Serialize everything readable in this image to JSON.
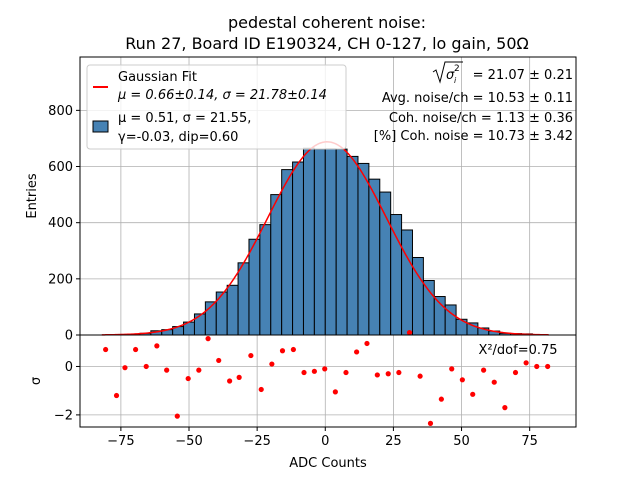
{
  "title_line1": "pedestal coherent noise:",
  "title_line2": "Run 27, Board ID E190324, CH 0-127, lo gain, 50Ω",
  "stats": {
    "sigma_total": "= 21.07 ± 0.21",
    "avg_noise": "Avg. noise/ch = 10.53 ± 0.11",
    "coh_noise": "Coh. noise/ch = 1.13 ± 0.36",
    "coh_pct": "[%] Coh. noise = 10.73  ± 3.42"
  },
  "legend": {
    "fit_label": "Gaussian Fit",
    "fit_params": "μ = 0.66±0.14, σ = 21.78±0.14",
    "hist_line1": "μ = 0.51, σ = 21.55,",
    "hist_line2": "γ=-0.03, dip=0.60"
  },
  "chi2_label": "X²/dof=0.75",
  "colors": {
    "bar_fill": "#4682b4",
    "fit_line": "#ff0000",
    "residual_points": "#ff0000"
  },
  "chart_data": [
    {
      "type": "bar",
      "title": "pedestal coherent noise: Run 27, Board ID E190324, CH 0-127, lo gain, 50Ω",
      "xlabel": "ADC Counts",
      "ylabel": "Entries",
      "xlim": [
        -90,
        92
      ],
      "ylim": [
        0,
        990
      ],
      "grid": true,
      "legend_position": "top-left",
      "bin_width": 4,
      "bin_centers": [
        -78,
        -74,
        -70,
        -66,
        -62,
        -58,
        -54,
        -50,
        -46,
        -42,
        -38,
        -34,
        -30,
        -26,
        -22,
        -18,
        -14,
        -10,
        -6,
        -2,
        2,
        6,
        10,
        14,
        18,
        22,
        26,
        30,
        34,
        38,
        42,
        46,
        50,
        54,
        58,
        62,
        66,
        70,
        74,
        78
      ],
      "values": [
        1,
        2,
        3,
        6,
        15,
        19,
        30,
        46,
        75,
        118,
        153,
        177,
        257,
        341,
        393,
        500,
        589,
        616,
        665,
        662,
        663,
        662,
        636,
        611,
        555,
        509,
        429,
        374,
        276,
        194,
        137,
        107,
        56,
        43,
        25,
        14,
        6,
        5,
        4,
        1
      ],
      "series": [
        {
          "name": "Gaussian Fit",
          "type": "line",
          "function": "gaussian",
          "mu": 0.66,
          "sigma": 21.78,
          "peak": 688,
          "x_range": [
            -82,
            82
          ]
        }
      ],
      "xticks": [
        -75,
        -50,
        -25,
        0,
        25,
        50,
        75
      ],
      "yticks": [
        0,
        200,
        400,
        600,
        800
      ]
    },
    {
      "type": "scatter",
      "xlabel": "ADC Counts",
      "ylabel": "σ",
      "xlim": [
        -90,
        92
      ],
      "ylim": [
        -2.5,
        1.3
      ],
      "grid": true,
      "yticks": [
        -2,
        0
      ],
      "x": [
        -80.6,
        -76.6,
        -73.5,
        -69.6,
        -65.7,
        -61.8,
        -58.2,
        -54.3,
        -50.3,
        -46.4,
        -43.0,
        -39.1,
        -35.1,
        -31.6,
        -27.3,
        -23.5,
        -19.6,
        -15.7,
        -11.7,
        -7.8,
        -4.0,
        -0.2,
        3.7,
        7.6,
        11.5,
        15.3,
        19.1,
        23.1,
        27.0,
        30.9,
        34.8,
        38.6,
        42.6,
        46.4,
        50.3,
        54.1,
        58.1,
        62.0,
        65.9,
        69.8,
        73.7,
        77.6,
        81.6
      ],
      "y": [
        0.7,
        -1.2,
        -0.05,
        0.7,
        0.0,
        0.85,
        -0.15,
        -2.05,
        -0.5,
        -0.15,
        1.15,
        0.25,
        -0.6,
        -0.45,
        0.45,
        -0.95,
        0.1,
        0.65,
        0.7,
        -0.25,
        -0.2,
        -0.1,
        -1.05,
        -0.25,
        0.6,
        0.95,
        -0.35,
        -0.3,
        -0.25,
        1.4,
        -0.4,
        -2.35,
        -1.35,
        -0.1,
        -0.55,
        -1.15,
        -0.15,
        -0.65,
        -1.7,
        -0.25,
        0.15,
        0.0,
        0.0
      ]
    }
  ]
}
